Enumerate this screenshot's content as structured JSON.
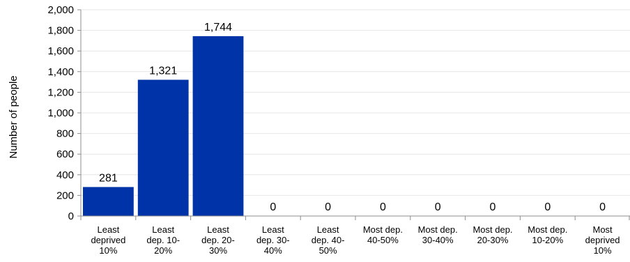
{
  "chart_data": {
    "type": "bar",
    "categories": [
      [
        "Least",
        "deprived",
        "10%"
      ],
      [
        "Least",
        "dep. 10-",
        "20%"
      ],
      [
        "Least",
        "dep. 20-",
        "30%"
      ],
      [
        "Least",
        "dep. 30-",
        "40%"
      ],
      [
        "Least",
        "dep. 40-",
        "50%"
      ],
      [
        "Most dep.",
        "40-50%"
      ],
      [
        "Most dep.",
        "30-40%"
      ],
      [
        "Most dep.",
        "20-30%"
      ],
      [
        "Most dep.",
        "10-20%"
      ],
      [
        "Most",
        "deprived",
        "10%"
      ]
    ],
    "values": [
      281,
      1321,
      1744,
      0,
      0,
      0,
      0,
      0,
      0,
      0
    ],
    "value_labels": [
      "281",
      "1,321",
      "1,744",
      "0",
      "0",
      "0",
      "0",
      "0",
      "0",
      "0"
    ],
    "title": "",
    "xlabel": "",
    "ylabel": "Number of people",
    "ylim": [
      0,
      2000
    ],
    "yticks": [
      0,
      200,
      400,
      600,
      800,
      1000,
      1200,
      1400,
      1600,
      1800,
      2000
    ],
    "ytick_labels": [
      "0",
      "200",
      "400",
      "600",
      "800",
      "1,000",
      "1,200",
      "1,400",
      "1,600",
      "1,800",
      "2,000"
    ],
    "grid": true,
    "legend": "none",
    "colors": {
      "bar": "#0033a8",
      "grid": "#e6e6e6",
      "axis": "#8c8c8c"
    }
  }
}
